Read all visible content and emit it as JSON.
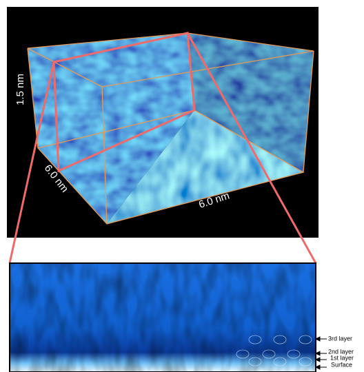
{
  "figure": {
    "labels": {
      "height": "1.5 nm",
      "depth": "6.0 nm",
      "width": "6.0 nm"
    },
    "layers": [
      "3rd layer",
      "2nd layer",
      "1st layer",
      "Surface"
    ]
  }
}
